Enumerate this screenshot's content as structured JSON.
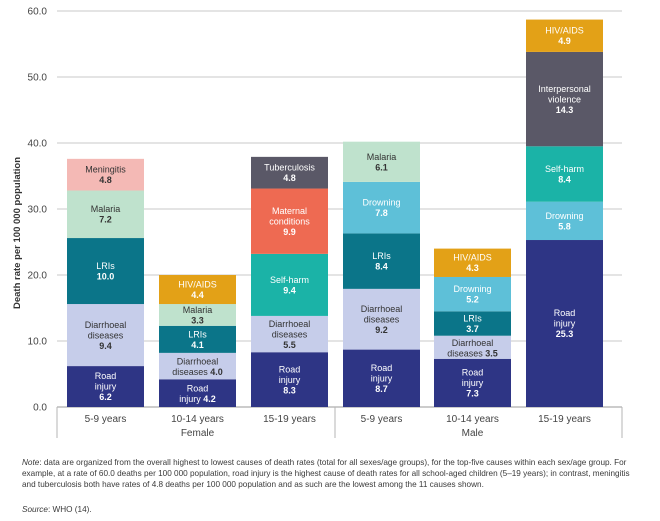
{
  "chart_data": {
    "type": "bar",
    "stacked": true,
    "ylabel": "Death rate per 100 000 population",
    "ylim": [
      0,
      60
    ],
    "yticks": [
      "0.0",
      "10.0",
      "20.0",
      "30.0",
      "40.0",
      "50.0",
      "60.0"
    ],
    "grid": true,
    "groups": [
      {
        "label": "Female",
        "categories": [
          "5-9 years",
          "10-14 years",
          "15-19 years"
        ]
      },
      {
        "label": "Male",
        "categories": [
          "5-9 years",
          "10-14 years",
          "15-19 years"
        ]
      }
    ],
    "bars": [
      {
        "category": "5-9 years",
        "group": "Female",
        "segments": [
          {
            "label": "Road injury",
            "value": 6.2,
            "value_text": "6.2",
            "color": "#2e3585",
            "text_color": "#ffffff"
          },
          {
            "label": "Diarrhoeal diseases",
            "value": 9.4,
            "value_text": "9.4",
            "color": "#c6cdea",
            "text_color": "#333333"
          },
          {
            "label": "LRIs",
            "value": 10.0,
            "value_text": "10.0",
            "color": "#0b7589",
            "text_color": "#ffffff"
          },
          {
            "label": "Malaria",
            "value": 7.2,
            "value_text": "7.2",
            "color": "#bfe2cd",
            "text_color": "#333333"
          },
          {
            "label": "Meningitis",
            "value": 4.8,
            "value_text": "4.8",
            "color": "#f4b9b5",
            "text_color": "#333333"
          }
        ]
      },
      {
        "category": "10-14 years",
        "group": "Female",
        "segments": [
          {
            "label": "Road injury",
            "value": 4.2,
            "value_text": "4.2",
            "color": "#2e3585",
            "text_color": "#ffffff"
          },
          {
            "label": "Diarrhoeal diseases",
            "value": 4.0,
            "value_text": "4.0",
            "color": "#c6cdea",
            "text_color": "#333333"
          },
          {
            "label": "LRIs",
            "value": 4.1,
            "value_text": "4.1",
            "color": "#0b7589",
            "text_color": "#ffffff"
          },
          {
            "label": "Malaria",
            "value": 3.3,
            "value_text": "3.3",
            "color": "#bfe2cd",
            "text_color": "#333333"
          },
          {
            "label": "HIV/AIDS",
            "value": 4.4,
            "value_text": "4.4",
            "color": "#e3a117",
            "text_color": "#ffffff"
          }
        ]
      },
      {
        "category": "15-19 years",
        "group": "Female",
        "segments": [
          {
            "label": "Road injury",
            "value": 8.3,
            "value_text": "8.3",
            "color": "#2e3585",
            "text_color": "#ffffff"
          },
          {
            "label": "Diarrhoeal diseases",
            "value": 5.5,
            "value_text": "5.5",
            "color": "#c6cdea",
            "text_color": "#333333"
          },
          {
            "label": "Self-harm",
            "value": 9.4,
            "value_text": "9.4",
            "color": "#1bb3a7",
            "text_color": "#ffffff"
          },
          {
            "label": "Maternal conditions",
            "value": 9.9,
            "value_text": "9.9",
            "color": "#ee6a52",
            "text_color": "#ffffff"
          },
          {
            "label": "Tuberculosis",
            "value": 4.8,
            "value_text": "4.8",
            "color": "#5a5867",
            "text_color": "#ffffff"
          }
        ]
      },
      {
        "category": "5-9 years",
        "group": "Male",
        "segments": [
          {
            "label": "Road injury",
            "value": 8.7,
            "value_text": "8.7",
            "color": "#2e3585",
            "text_color": "#ffffff"
          },
          {
            "label": "Diarrhoeal diseases",
            "value": 9.2,
            "value_text": "9.2",
            "color": "#c6cdea",
            "text_color": "#333333"
          },
          {
            "label": "LRIs",
            "value": 8.4,
            "value_text": "8.4",
            "color": "#0b7589",
            "text_color": "#ffffff"
          },
          {
            "label": "Drowning",
            "value": 7.8,
            "value_text": "7.8",
            "color": "#5ec0d8",
            "text_color": "#ffffff"
          },
          {
            "label": "Malaria",
            "value": 6.1,
            "value_text": "6.1",
            "color": "#bfe2cd",
            "text_color": "#333333"
          }
        ]
      },
      {
        "category": "10-14 years",
        "group": "Male",
        "segments": [
          {
            "label": "Road injury",
            "value": 7.3,
            "value_text": "7.3",
            "color": "#2e3585",
            "text_color": "#ffffff"
          },
          {
            "label": "Diarrhoeal diseases",
            "value": 3.5,
            "value_text": "3.5",
            "color": "#c6cdea",
            "text_color": "#333333"
          },
          {
            "label": "LRIs",
            "value": 3.7,
            "value_text": "3.7",
            "color": "#0b7589",
            "text_color": "#ffffff"
          },
          {
            "label": "Drowning",
            "value": 5.2,
            "value_text": "5.2",
            "color": "#5ec0d8",
            "text_color": "#ffffff"
          },
          {
            "label": "HIV/AIDS",
            "value": 4.3,
            "value_text": "4.3",
            "color": "#e3a117",
            "text_color": "#ffffff"
          }
        ]
      },
      {
        "category": "15-19 years",
        "group": "Male",
        "segments": [
          {
            "label": "Road injury",
            "value": 25.3,
            "value_text": "25.3",
            "color": "#2e3585",
            "text_color": "#ffffff"
          },
          {
            "label": "Drowning",
            "value": 5.8,
            "value_text": "5.8",
            "color": "#5ec0d8",
            "text_color": "#ffffff"
          },
          {
            "label": "Self-harm",
            "value": 8.4,
            "value_text": "8.4",
            "color": "#1bb3a7",
            "text_color": "#ffffff"
          },
          {
            "label": "Interpersonal violence",
            "value": 14.3,
            "value_text": "14.3",
            "color": "#5a5867",
            "text_color": "#ffffff"
          },
          {
            "label": "HIV/AIDS",
            "value": 4.9,
            "value_text": "4.9",
            "color": "#e3a117",
            "text_color": "#ffffff"
          }
        ]
      }
    ]
  },
  "note": {
    "label": "Note",
    "text": ": data are organized from the overall highest to lowest causes of death rates (total for all sexes/age groups), for the top-five causes within each sex/age group. For example, at a rate of 60.0 deaths per 100 000 population, road injury is the highest cause of death rates for all school-aged children (5–19 years); in contrast, meningitis and tuberculosis both have rates of 4.8 deaths per 100 000 population and as such are the lowest among the 11 causes shown."
  },
  "source": {
    "label": "Source",
    "text": ": WHO (14)."
  }
}
